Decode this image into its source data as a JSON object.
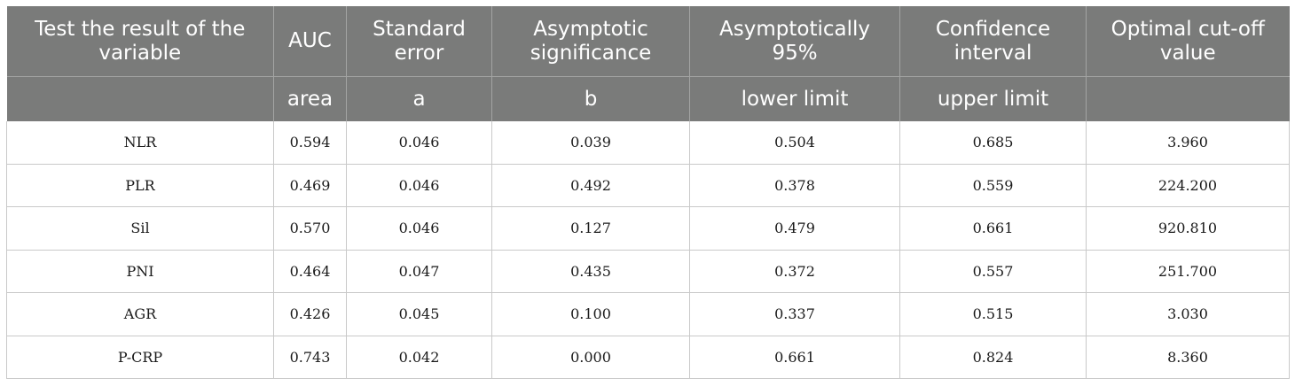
{
  "table": {
    "header_row1": [
      "Test the result of the variable",
      "AUC",
      "Standard error",
      "Asymptotic significance",
      "Asymptotically 95%",
      "Confidence interval",
      "Optimal cut-off value"
    ],
    "header_row2": [
      "",
      "area",
      "a",
      "b",
      "lower limit",
      "upper limit",
      ""
    ],
    "rows": [
      [
        "NLR",
        "0.594",
        "0.046",
        "0.039",
        "0.504",
        "0.685",
        "3.960"
      ],
      [
        "PLR",
        "0.469",
        "0.046",
        "0.492",
        "0.378",
        "0.559",
        "224.200"
      ],
      [
        "Sil",
        "0.570",
        "0.046",
        "0.127",
        "0.479",
        "0.661",
        "920.810"
      ],
      [
        "PNI",
        "0.464",
        "0.047",
        "0.435",
        "0.372",
        "0.557",
        "251.700"
      ],
      [
        "AGR",
        "0.426",
        "0.045",
        "0.100",
        "0.337",
        "0.515",
        "3.030"
      ],
      [
        "P-CRP",
        "0.743",
        "0.042",
        "0.000",
        "0.661",
        "0.824",
        "8.360"
      ]
    ]
  },
  "colors": {
    "header_bg": "#7a7b7a",
    "header_text": "#ffffff",
    "body_text": "#1a1a1a",
    "grid": "#c9c9c9"
  }
}
